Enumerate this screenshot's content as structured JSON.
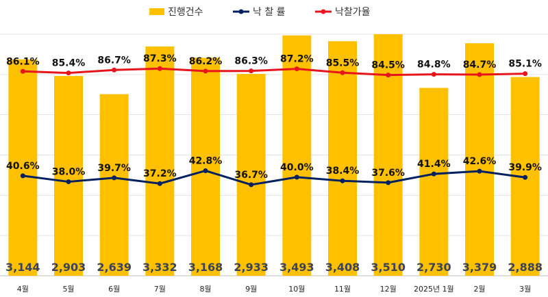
{
  "chart_data": {
    "type": "bar",
    "categories": [
      "4월",
      "5월",
      "6월",
      "7월",
      "8월",
      "9월",
      "10월",
      "11월",
      "12월",
      "2025년 1월",
      "2월",
      "3월"
    ],
    "series": [
      {
        "name": "진행건수",
        "kind": "bar",
        "color": "#FFC000",
        "values": [
          3144,
          2903,
          2639,
          3332,
          3168,
          2933,
          3493,
          3408,
          3510,
          2730,
          3379,
          2888
        ],
        "labels": [
          "3,144",
          "2,903",
          "2,639",
          "3,332",
          "3,168",
          "2,933",
          "3,493",
          "3,408",
          "3,510",
          "2,730",
          "3,379",
          "2,888"
        ]
      },
      {
        "name": "낙 찰 률",
        "kind": "line",
        "color": "#002060",
        "values": [
          40.6,
          38.0,
          39.7,
          37.2,
          42.8,
          36.7,
          40.0,
          38.4,
          37.6,
          41.4,
          42.6,
          39.9
        ],
        "labels": [
          "40.6%",
          "38.0%",
          "39.7%",
          "37.2%",
          "42.8%",
          "36.7%",
          "40.0%",
          "38.4%",
          "37.6%",
          "41.4%",
          "42.6%",
          "39.9%"
        ]
      },
      {
        "name": "낙찰가율",
        "kind": "line",
        "color": "#E8141B",
        "values": [
          86.1,
          85.4,
          86.7,
          87.3,
          86.2,
          86.3,
          87.2,
          85.5,
          84.5,
          84.8,
          84.7,
          85.1
        ],
        "labels": [
          "86.1%",
          "85.4%",
          "86.7%",
          "87.3%",
          "86.2%",
          "86.3%",
          "87.2%",
          "85.5%",
          "84.5%",
          "84.8%",
          "84.7%",
          "85.1%"
        ]
      }
    ],
    "legend_position": "top-center",
    "grid": true
  }
}
